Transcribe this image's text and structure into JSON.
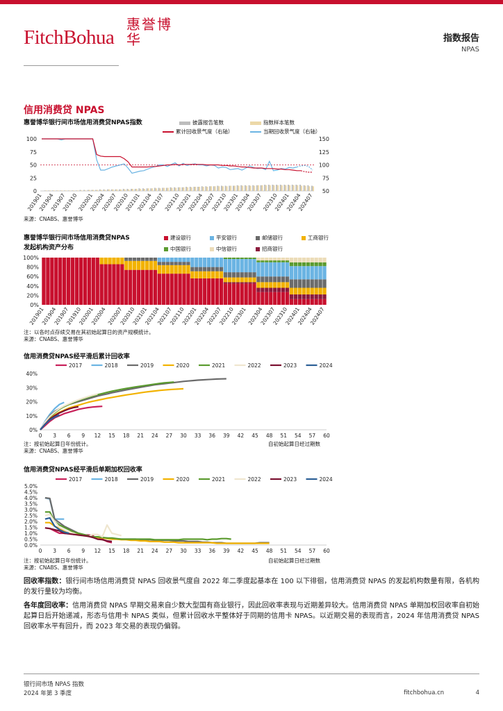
{
  "header": {
    "logo_text": "FitchBohua",
    "seal_text": "惠誉博华",
    "report_type": "指数报告",
    "report_sub": "NPAS"
  },
  "section_title": "信用消费贷 NPAS",
  "colors": {
    "brand": "#c8102e",
    "gray": "#bdbdbd",
    "beige": "#ecd8a8",
    "lightblue": "#6bb4e3",
    "jianshe": "#c8102e",
    "pingan": "#6bb4e3",
    "youchu": "#6b6b6b",
    "gongshang": "#f2b200",
    "zhongguo": "#5b9b2f",
    "zhongxin": "#ecdcb8",
    "zhaoshang": "#8b1a3c"
  },
  "chart_data": [
    {
      "type": "bar+line",
      "title": "惠誉博华银行间市场信用消费贷NPAS指数",
      "legend": [
        "披露报告笔数",
        "指数样本笔数",
        "累计回收景气度（右轴）",
        "当期回收景气度（右轴）"
      ],
      "left_ticks": [
        "100",
        "75",
        "50",
        "25",
        "0"
      ],
      "right_ticks": [
        "150",
        "125",
        "100",
        "75",
        "50"
      ],
      "ylim_left": [
        0,
        100
      ],
      "ylim_right": [
        50,
        150
      ],
      "reference_line_right": 100,
      "x_ticks": [
        "201901",
        "201904",
        "201907",
        "201910",
        "202001",
        "202004",
        "202007",
        "202010",
        "202101",
        "202104",
        "202107",
        "202110",
        "202201",
        "202204",
        "202207",
        "202210",
        "202301",
        "202304",
        "202307",
        "202310",
        "202401",
        "202404",
        "202407"
      ],
      "series": [
        {
          "name": "披露报告笔数",
          "values": [
            0,
            1,
            1,
            1,
            1,
            1,
            1,
            1,
            1,
            1,
            2,
            2,
            2,
            2,
            2,
            3,
            3,
            3,
            3,
            3,
            3,
            4,
            4,
            4,
            4,
            5,
            5,
            5,
            5,
            6,
            6,
            6,
            6,
            7,
            7,
            7,
            7,
            8,
            8,
            8,
            8,
            9,
            9,
            9,
            9,
            10,
            10,
            10,
            10,
            10,
            11,
            11,
            11,
            11,
            11,
            11,
            11,
            12,
            12,
            12,
            12,
            12,
            12,
            12,
            12,
            12,
            12,
            11,
            11,
            10
          ]
        },
        {
          "name": "指数样本笔数",
          "values": [
            0,
            1,
            1,
            1,
            1,
            1,
            1,
            1,
            1,
            1,
            1,
            1,
            2,
            2,
            2,
            2,
            2,
            3,
            3,
            3,
            3,
            3,
            3,
            4,
            4,
            4,
            4,
            5,
            5,
            5,
            5,
            6,
            6,
            6,
            6,
            7,
            7,
            7,
            7,
            8,
            8,
            8,
            8,
            9,
            9,
            9,
            9,
            9,
            10,
            10,
            10,
            10,
            10,
            10,
            10,
            11,
            11,
            11,
            11,
            11,
            11,
            11,
            11,
            11,
            11,
            11,
            10,
            10,
            9,
            9
          ]
        },
        {
          "name": "累计回收景气度（右轴）",
          "values": [
            150,
            150,
            150,
            150,
            150,
            150,
            150,
            150,
            150,
            150,
            150,
            150,
            150,
            150,
            120,
            117,
            116,
            116,
            116,
            116,
            116,
            112,
            106,
            96,
            96,
            96,
            96,
            96,
            97,
            97,
            98,
            99,
            100,
            100,
            101,
            100,
            101,
            101,
            101,
            101,
            101,
            101,
            100,
            100,
            100,
            100,
            99,
            99,
            98,
            98,
            97,
            96,
            96,
            95,
            94,
            94,
            94,
            93,
            93,
            93,
            92,
            92,
            91,
            91,
            90,
            89,
            89,
            87,
            86,
            86
          ]
        },
        {
          "name": "当期回收景气度（右轴）",
          "values": [
            150,
            150,
            150,
            150,
            150,
            148,
            150,
            150,
            150,
            150,
            150,
            150,
            150,
            150,
            110,
            90,
            90,
            93,
            96,
            98,
            100,
            102,
            94,
            84,
            86,
            88,
            89,
            92,
            95,
            97,
            100,
            100,
            97,
            101,
            104,
            98,
            103,
            99,
            101,
            102,
            100,
            100,
            98,
            100,
            99,
            94,
            96,
            95,
            91,
            92,
            93,
            90,
            94,
            98,
            95,
            93,
            94,
            91,
            107,
            89,
            90,
            93,
            92,
            95,
            94,
            96,
            98,
            99,
            97,
            90
          ]
        }
      ]
    },
    {
      "type": "stacked-bar-100",
      "title": "惠誉博华银行间市场信用消费贷NPAS发起机构资产分布",
      "legend": [
        "建设银行",
        "平安银行",
        "邮储银行",
        "工商银行",
        "中国银行",
        "中信银行",
        "招商银行"
      ],
      "y_ticks": [
        "100%",
        "80%",
        "60%",
        "40%",
        "20%",
        "0%"
      ],
      "x_ticks": [
        "201901",
        "201904",
        "201907",
        "201910",
        "202001",
        "202004",
        "202007",
        "202010",
        "202101",
        "202104",
        "202107",
        "202110",
        "202201",
        "202204",
        "202207",
        "202210",
        "202301",
        "202304",
        "202307",
        "202310",
        "202401",
        "202404",
        "202407"
      ],
      "note": "注：以各时点存续交易在其初始起算日的资产规模统计。",
      "source": "来源：CNABS、惠誉博华"
    },
    {
      "type": "line",
      "title": "信用消费贷NPAS经平滑后累计回收率",
      "legend": [
        "2017",
        "2018",
        "2019",
        "2020",
        "2021",
        "2022",
        "2023",
        "2024"
      ],
      "y_ticks": [
        "40%",
        "30%",
        "20%",
        "10%",
        "0%"
      ],
      "ylim": [
        0,
        40
      ],
      "x_ticks": [
        "0",
        "3",
        "6",
        "9",
        "12",
        "15",
        "18",
        "21",
        "24",
        "27",
        "30",
        "33",
        "36",
        "39",
        "42",
        "45",
        "48",
        "51",
        "54",
        "57",
        "60"
      ],
      "xlim": [
        0,
        60
      ],
      "series": [
        {
          "name": "2017",
          "values": [
            0,
            3,
            6,
            8.5,
            10,
            11.5,
            12.5,
            13.5,
            14.5,
            15.2,
            15.8,
            16.2,
            16.5,
            16.7
          ]
        },
        {
          "name": "2018",
          "values": [
            0,
            6,
            11,
            15,
            18,
            19.5
          ]
        },
        {
          "name": "2019",
          "values": [
            0,
            5,
            10,
            13,
            15,
            16.5,
            18,
            19,
            20,
            21,
            22,
            23,
            24,
            24.8,
            25.5,
            26.3,
            27,
            27.7,
            28.4,
            29,
            29.6,
            30.2,
            30.8,
            31.4,
            32,
            32.4,
            32.8,
            33.2,
            33.6,
            34,
            34.4,
            34.7,
            35,
            35.3,
            35.5,
            35.7,
            35.9,
            36.1,
            36.2,
            36.3
          ]
        },
        {
          "name": "2020",
          "values": [
            0,
            4,
            8,
            10.5,
            12.5,
            14,
            15.5,
            16.5,
            17.5,
            18.5,
            19.5,
            20.3,
            21,
            21.7,
            22.4,
            23,
            23.6,
            24.2,
            24.8,
            25.3,
            25.8,
            26.3,
            26.8,
            27.2,
            27.6,
            28,
            28.3,
            28.6,
            28.8,
            29,
            29.2
          ]
        },
        {
          "name": "2021",
          "values": [
            0,
            5,
            9,
            12,
            14.5,
            16.5,
            18,
            19.5,
            20.8,
            22,
            23,
            24,
            25,
            25.8,
            26.6,
            27.4,
            28.1,
            28.8,
            29.4,
            30,
            30.5,
            31,
            31.5,
            32,
            32.5,
            33,
            33.4,
            33.7,
            34
          ]
        },
        {
          "name": "2022",
          "values": [
            0,
            5.5,
            9.5,
            12.5,
            15,
            17,
            18.5,
            20,
            21.3,
            22.5,
            23.6,
            24.6,
            25.5
          ]
        },
        {
          "name": "2023",
          "values": [
            0,
            4,
            7.5,
            10,
            12,
            13.5,
            14.8,
            15.8,
            16.4
          ]
        },
        {
          "name": "2024",
          "values": [
            0,
            4,
            7,
            9,
            10.5
          ]
        }
      ],
      "x_unit": "自初始起算日经过期数",
      "note": "注：按初始起算日年份统计。",
      "source": "来源：CNABS、惠誉博华"
    },
    {
      "type": "line",
      "title": "信用消费贷NPAS经平滑后单期加权回收率",
      "legend": [
        "2017",
        "2018",
        "2019",
        "2020",
        "2021",
        "2022",
        "2023",
        "2024"
      ],
      "y_ticks": [
        "5.0%",
        "4.5%",
        "4.0%",
        "3.5%",
        "3.0%",
        "2.5%",
        "2.0%",
        "1.5%",
        "1.0%",
        "0.5%",
        "0.0%"
      ],
      "ylim": [
        0,
        5
      ],
      "x_ticks": [
        "0",
        "3",
        "6",
        "9",
        "12",
        "15",
        "18",
        "21",
        "24",
        "27",
        "30",
        "33",
        "36",
        "39",
        "42",
        "45",
        "48",
        "51",
        "54",
        "57",
        "60"
      ],
      "xlim": [
        0,
        60
      ],
      "series": [
        {
          "name": "2017",
          "values": [
            null,
            1.45,
            1.4,
            1.2,
            1.0,
            1.0,
            0.95,
            0.9,
            0.9,
            0.85,
            0.85,
            0.8,
            0.5,
            0.5,
            0.3,
            0.2
          ]
        },
        {
          "name": "2018",
          "values": [
            null,
            4.0,
            3.9,
            2.2,
            2.2,
            2.2
          ]
        },
        {
          "name": "2019",
          "values": [
            null,
            4.0,
            3.95,
            2.2,
            1.9,
            1.6,
            1.4,
            1.2,
            1.0,
            0.9,
            0.8,
            0.7,
            0.7,
            0.6,
            0.6,
            0.5,
            0.5,
            0.5,
            0.5,
            0.5,
            0.5,
            0.45,
            0.45,
            0.45,
            0.4,
            0.4,
            0.4,
            0.4,
            0.35,
            0.35,
            0.35,
            0.3,
            0.3,
            0.3,
            0.25,
            0.25,
            0.2,
            0.2,
            0.2,
            0.15,
            0.15,
            0.15,
            0.15,
            0.15,
            0.15,
            0.15,
            0.2,
            0.2,
            0.2
          ]
        },
        {
          "name": "2020",
          "values": [
            null,
            1.9,
            1.9,
            1.6,
            1.4,
            1.2,
            1.1,
            1.0,
            0.9,
            0.8,
            0.75,
            0.7,
            0.65,
            0.6,
            0.55,
            0.5,
            0.5,
            0.45,
            0.45,
            0.4,
            0.4,
            0.35,
            0.35,
            0.3,
            0.3,
            0.3,
            0.25,
            0.25,
            0.25,
            0.2,
            0.2,
            0.2,
            0.2,
            0.2,
            0.2,
            0.2,
            0.2,
            0.15,
            0.15,
            0.15,
            0.15,
            0.15,
            0.15,
            0.15,
            0.15,
            0.15,
            0.15,
            0.15,
            0.15
          ]
        },
        {
          "name": "2021",
          "values": [
            null,
            2.8,
            2.8,
            2.0,
            1.7,
            1.5,
            1.3,
            1.1,
            1.0,
            0.9,
            0.8,
            0.7,
            0.7,
            0.65,
            0.6,
            0.6,
            0.55,
            0.5,
            0.5,
            0.5,
            0.5,
            0.5,
            0.5,
            0.5,
            0.45,
            0.45,
            0.45,
            0.45,
            0.45,
            0.45,
            0.5,
            0.5,
            0.5,
            0.5,
            0.5,
            0.45,
            0.5,
            0.5,
            0.55,
            0.55,
            0.5
          ]
        },
        {
          "name": "2022",
          "values": [
            null,
            2.5,
            2.6,
            2.0,
            1.5,
            1.3,
            1.1,
            1.0,
            0.8,
            0.8,
            0.7,
            0.9,
            0.9,
            0.7,
            1.7,
            1.0,
            0.9,
            0.8
          ]
        },
        {
          "name": "2023",
          "values": [
            null,
            1.45,
            1.4,
            1.3,
            1.2,
            1.0,
            0.95,
            0.9,
            0.85,
            0.8,
            0.75,
            0.65,
            0.5,
            0.45,
            0.35,
            0.3
          ]
        },
        {
          "name": "2024",
          "values": [
            null,
            2.2,
            2.3,
            1.6,
            1.3,
            1.1,
            1.0
          ]
        }
      ],
      "x_unit": "自初始起算日经过期数",
      "note": "注：按初始起算日年份统计。",
      "source": "来源：CNABS、惠誉博华"
    }
  ],
  "chart1": {
    "title": "惠誉博华银行间市场信用消费贷NPAS指数",
    "legend": [
      "披露报告笔数",
      "指数样本笔数",
      "累计回收景气度（右轴）",
      "当期回收景气度（右轴）"
    ],
    "source": "来源：CNABS、惠誉博华"
  },
  "chart2": {
    "title_l1": "惠誉博华银行间市场信用消费贷NPAS",
    "title_l2": "发起机构资产分布",
    "legend": [
      "建设银行",
      "平安银行",
      "邮储银行",
      "工商银行",
      "中国银行",
      "中信银行",
      "招商银行"
    ],
    "note": "注：以各时点存续交易在其初始起算日的资产规模统计。",
    "source": "来源：CNABS、惠誉博华"
  },
  "chart3": {
    "title": "信用消费贷NPAS经平滑后累计回收率",
    "note": "注：按初始起算日年份统计。",
    "source": "来源：CNABS、惠誉博华",
    "x_unit": "自初始起算日经过期数"
  },
  "chart4": {
    "title": "信用消费贷NPAS经平滑后单期加权回收率",
    "note": "注：按初始起算日年份统计。",
    "source": "来源：CNABS、惠誉博华",
    "x_unit": "自初始起算日经过期数"
  },
  "body": {
    "p1_label": "回收率指数：",
    "p1_text": "银行间市场信用消费贷 NPAS 回收景气度自 2022 年二季度起基本在 100 以下徘徊，信用消费贷 NPAS 的发起机构数量有限，各机构的发行量较为均衡。",
    "p2_label": "各年度回收率：",
    "p2_text": "信用消费贷 NPAS 早期交易来自少数大型国有商业银行，因此回收率表现与近期差异较大。信用消费贷 NPAS 单期加权回收率自初始起算日后开始递减，形态与信用卡 NPAS 类似，但累计回收水平整体好于同期的信用卡 NPAS。以近期交易的表现而言，2024 年信用消费贷 NPAS 回收率水平有回升，而 2023 年交易的表现仍偏弱。"
  },
  "footer": {
    "line1": "银行间市场 NPAS 指数",
    "line2": "2024 年第 3 季度",
    "site": "fitchbohua.cn",
    "page": "4"
  }
}
